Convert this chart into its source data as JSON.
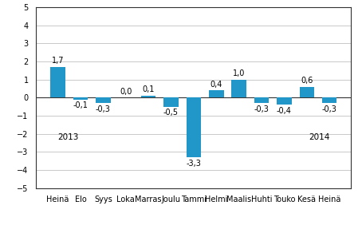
{
  "categories": [
    "Heinä",
    "Elo",
    "Syys",
    "Loka",
    "Marras",
    "Joulu",
    "Tammi",
    "Helmi",
    "Maalis",
    "Huhti",
    "Touko",
    "Kesä",
    "Heinä"
  ],
  "values": [
    1.7,
    -0.1,
    -0.3,
    0.0,
    0.1,
    -0.5,
    -3.3,
    0.4,
    1.0,
    -0.3,
    -0.4,
    0.6,
    -0.3
  ],
  "bar_color": "#2196c8",
  "ylim": [
    -5,
    5
  ],
  "yticks": [
    -5,
    -4,
    -3,
    -2,
    -1,
    0,
    1,
    2,
    3,
    4,
    5
  ],
  "value_labels": [
    "1,7",
    "-0,1",
    "-0,3",
    "0,0",
    "0,1",
    "-0,5",
    "-3,3",
    "0,4",
    "1,0",
    "-0,3",
    "-0,4",
    "0,6",
    "-0,3"
  ],
  "background_color": "#ffffff",
  "grid_color": "#c0c0c0",
  "spine_color": "#333333",
  "label_fontsize": 7.0,
  "value_fontsize": 7.0,
  "year_fontsize": 7.5,
  "year_2013_idx": 0,
  "year_2014_idx": 12,
  "bar_width": 0.65
}
